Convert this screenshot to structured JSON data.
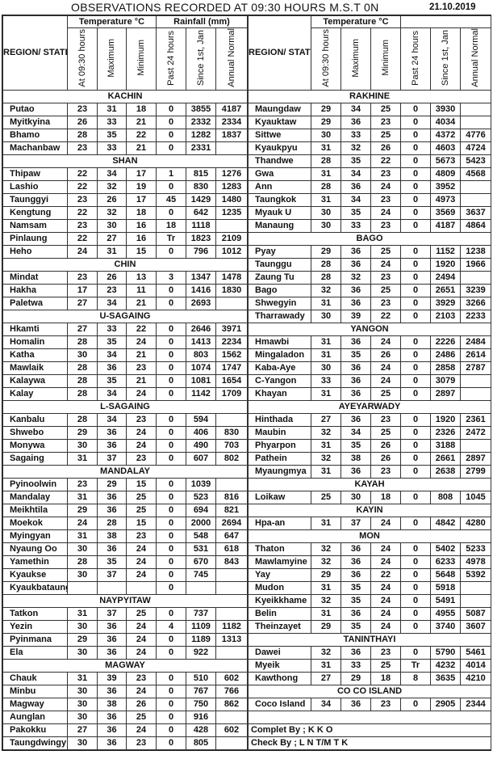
{
  "title": "OBSERVATIONS RECORDED AT 09:30 HOURS M.S.T 0N",
  "date": "21.10.2019",
  "headers": {
    "region": "REGION/ STATE",
    "temperature": "Temperature °C",
    "rainfall": "Rainfall (mm)",
    "at_0930": "At 09:30 hours",
    "maximum": "Maximum",
    "minimum": "Minimum",
    "past_24": "Past 24 hours",
    "since_jan": "Since 1st, Jan",
    "annual_normal": "Annual Normal"
  },
  "left": [
    {
      "name": "KACHIN",
      "stations": [
        [
          "Putao",
          "23",
          "31",
          "18",
          "0",
          "3855",
          "4187"
        ],
        [
          "Myitkyina",
          "26",
          "33",
          "21",
          "0",
          "2332",
          "2334"
        ],
        [
          "Bhamo",
          "28",
          "35",
          "22",
          "0",
          "1282",
          "1837"
        ],
        [
          "Machanbaw",
          "23",
          "33",
          "21",
          "0",
          "2331",
          ""
        ]
      ]
    },
    {
      "name": "SHAN",
      "stations": [
        [
          "Thipaw",
          "22",
          "34",
          "17",
          "1",
          "815",
          "1276"
        ],
        [
          "Lashio",
          "22",
          "32",
          "19",
          "0",
          "830",
          "1283"
        ],
        [
          "Taunggyi",
          "23",
          "26",
          "17",
          "45",
          "1429",
          "1480"
        ],
        [
          "Kengtung",
          "22",
          "32",
          "18",
          "0",
          "642",
          "1235"
        ],
        [
          "Namsam",
          "23",
          "30",
          "16",
          "18",
          "1118",
          ""
        ],
        [
          "Pinlaung",
          "22",
          "27",
          "16",
          "Tr",
          "1823",
          "2109"
        ],
        [
          "Heho",
          "24",
          "31",
          "15",
          "0",
          "796",
          "1012"
        ]
      ]
    },
    {
      "name": "CHIN",
      "stations": [
        [
          "Mindat",
          "23",
          "26",
          "13",
          "3",
          "1347",
          "1478"
        ],
        [
          "Hakha",
          "17",
          "23",
          "11",
          "0",
          "1416",
          "1830"
        ],
        [
          "Paletwa",
          "27",
          "34",
          "21",
          "0",
          "2693",
          ""
        ]
      ]
    },
    {
      "name": "U-SAGAING",
      "stations": [
        [
          "Hkamti",
          "27",
          "33",
          "22",
          "0",
          "2646",
          "3971"
        ],
        [
          "Homalin",
          "28",
          "35",
          "24",
          "0",
          "1413",
          "2234"
        ],
        [
          "Katha",
          "30",
          "34",
          "21",
          "0",
          "803",
          "1562"
        ],
        [
          "Mawlaik",
          "28",
          "36",
          "23",
          "0",
          "1074",
          "1747"
        ],
        [
          "Kalaywa",
          "28",
          "35",
          "21",
          "0",
          "1081",
          "1654"
        ],
        [
          "Kalay",
          "28",
          "34",
          "24",
          "0",
          "1142",
          "1709"
        ]
      ]
    },
    {
      "name": "L-SAGAING",
      "stations": [
        [
          "Kanbalu",
          "28",
          "34",
          "23",
          "0",
          "594",
          ""
        ],
        [
          "Shwebo",
          "29",
          "36",
          "24",
          "0",
          "406",
          "830"
        ],
        [
          "Monywa",
          "30",
          "36",
          "24",
          "0",
          "490",
          "703"
        ],
        [
          "Sagaing",
          "31",
          "37",
          "23",
          "0",
          "607",
          "802"
        ]
      ]
    },
    {
      "name": "MANDALAY",
      "stations": [
        [
          "Pyinoolwin",
          "23",
          "29",
          "15",
          "0",
          "1039",
          ""
        ],
        [
          "Mandalay",
          "31",
          "36",
          "25",
          "0",
          "523",
          "816"
        ],
        [
          "Meikhtila",
          "29",
          "36",
          "25",
          "0",
          "694",
          "821"
        ],
        [
          "Moekok",
          "24",
          "28",
          "15",
          "0",
          "2000",
          "2694"
        ],
        [
          "Myingyan",
          "31",
          "38",
          "23",
          "0",
          "548",
          "647"
        ],
        [
          "Nyaung Oo",
          "30",
          "36",
          "24",
          "0",
          "531",
          "618"
        ],
        [
          "Yamethin",
          "28",
          "35",
          "24",
          "0",
          "670",
          "843"
        ],
        [
          "Kyaukse",
          "30",
          "37",
          "24",
          "0",
          "745",
          ""
        ],
        [
          "Kyaukbataung",
          "",
          "",
          "",
          "0",
          "",
          ""
        ]
      ]
    },
    {
      "name": "NAYPYITAW",
      "stations": [
        [
          "Tatkon",
          "31",
          "37",
          "25",
          "0",
          "737",
          ""
        ],
        [
          "Yezin",
          "30",
          "36",
          "24",
          "4",
          "1109",
          "1182"
        ],
        [
          "Pyinmana",
          "29",
          "36",
          "24",
          "0",
          "1189",
          "1313"
        ],
        [
          "Ela",
          "30",
          "36",
          "24",
          "0",
          "922",
          ""
        ]
      ]
    },
    {
      "name": "MAGWAY",
      "stations": [
        [
          "Chauk",
          "31",
          "39",
          "23",
          "0",
          "510",
          "602"
        ],
        [
          "Minbu",
          "30",
          "36",
          "24",
          "0",
          "767",
          "766"
        ],
        [
          "Magway",
          "30",
          "38",
          "26",
          "0",
          "750",
          "862"
        ],
        [
          "Aunglan",
          "30",
          "36",
          "25",
          "0",
          "916",
          ""
        ],
        [
          "Pakokku",
          "27",
          "36",
          "24",
          "0",
          "428",
          "602"
        ],
        [
          "Taungdwingy",
          "30",
          "36",
          "23",
          "0",
          "805",
          ""
        ]
      ]
    }
  ],
  "right": [
    {
      "name": "RAKHINE",
      "stations": [
        [
          "Maungdaw",
          "29",
          "34",
          "25",
          "0",
          "3930",
          ""
        ],
        [
          "Kyauktaw",
          "29",
          "36",
          "23",
          "0",
          "4034",
          ""
        ],
        [
          "Sittwe",
          "30",
          "33",
          "25",
          "0",
          "4372",
          "4776"
        ],
        [
          "Kyaukpyu",
          "31",
          "32",
          "26",
          "0",
          "4603",
          "4724"
        ],
        [
          "Thandwe",
          "28",
          "35",
          "22",
          "0",
          "5673",
          "5423"
        ],
        [
          "Gwa",
          "31",
          "34",
          "23",
          "0",
          "4809",
          "4568"
        ],
        [
          "Ann",
          "28",
          "36",
          "24",
          "0",
          "3952",
          ""
        ],
        [
          "Taungkok",
          "31",
          "34",
          "23",
          "0",
          "4973",
          ""
        ],
        [
          "Myauk U",
          "30",
          "35",
          "24",
          "0",
          "3569",
          "3637"
        ],
        [
          "Manaung",
          "30",
          "33",
          "23",
          "0",
          "4187",
          "4864"
        ]
      ]
    },
    {
      "name": "BAGO",
      "stations": [
        [
          "Pyay",
          "29",
          "36",
          "25",
          "0",
          "1152",
          "1238"
        ],
        [
          "Taunggu",
          "28",
          "36",
          "24",
          "0",
          "1920",
          "1966"
        ],
        [
          "Zaung Tu",
          "28",
          "32",
          "23",
          "0",
          "2494",
          ""
        ],
        [
          "Bago",
          "32",
          "36",
          "25",
          "0",
          "2651",
          "3239"
        ],
        [
          "Shwegyin",
          "31",
          "36",
          "23",
          "0",
          "3929",
          "3266"
        ],
        [
          "Tharrawady",
          "30",
          "39",
          "22",
          "0",
          "2103",
          "2233"
        ]
      ]
    },
    {
      "name": "YANGON",
      "stations": [
        [
          "Hmawbi",
          "31",
          "36",
          "24",
          "0",
          "2226",
          "2484"
        ],
        [
          "Mingaladon",
          "31",
          "35",
          "26",
          "0",
          "2486",
          "2614"
        ],
        [
          "Kaba-Aye",
          "30",
          "36",
          "24",
          "0",
          "2858",
          "2787"
        ],
        [
          "C-Yangon",
          "33",
          "36",
          "24",
          "0",
          "3079",
          ""
        ],
        [
          "Khayan",
          "31",
          "36",
          "25",
          "0",
          "2897",
          ""
        ]
      ]
    },
    {
      "name": "AYEYARWADY",
      "stations": [
        [
          "Hinthada",
          "27",
          "36",
          "23",
          "0",
          "1920",
          "2361"
        ],
        [
          "Maubin",
          "32",
          "34",
          "25",
          "0",
          "2326",
          "2472"
        ],
        [
          "Phyarpon",
          "31",
          "35",
          "26",
          "0",
          "3188",
          ""
        ],
        [
          "Pathein",
          "32",
          "38",
          "26",
          "0",
          "2661",
          "2897"
        ],
        [
          "Myaungmya",
          "31",
          "36",
          "23",
          "0",
          "2638",
          "2799"
        ]
      ]
    },
    {
      "name": "KAYAH",
      "stations": [
        [
          "Loikaw",
          "25",
          "30",
          "18",
          "0",
          "808",
          "1045"
        ]
      ]
    },
    {
      "name": "KAYIN",
      "stations": [
        [
          "Hpa-an",
          "31",
          "37",
          "24",
          "0",
          "4842",
          "4280"
        ]
      ]
    },
    {
      "name": "MON",
      "stations": [
        [
          "Thaton",
          "32",
          "36",
          "24",
          "0",
          "5402",
          "5233"
        ],
        [
          "Mawlamyine",
          "32",
          "36",
          "24",
          "0",
          "6233",
          "4978"
        ],
        [
          "Yay",
          "29",
          "36",
          "22",
          "0",
          "5648",
          "5392"
        ],
        [
          "Mudon",
          "31",
          "35",
          "24",
          "0",
          "5918",
          ""
        ],
        [
          "Kyeikkhame",
          "32",
          "35",
          "24",
          "0",
          "5491",
          ""
        ],
        [
          "Belin",
          "31",
          "36",
          "24",
          "0",
          "4955",
          "5087"
        ],
        [
          "Theinzayet",
          "29",
          "35",
          "24",
          "0",
          "3740",
          "3607"
        ]
      ]
    },
    {
      "name": "TANINTHAYI",
      "stations": [
        [
          "Dawei",
          "32",
          "36",
          "23",
          "0",
          "5790",
          "5461"
        ],
        [
          "Myeik",
          "31",
          "33",
          "25",
          "Tr",
          "4232",
          "4014"
        ],
        [
          "Kawthong",
          "27",
          "29",
          "18",
          "8",
          "3635",
          "4210"
        ]
      ]
    },
    {
      "name": "CO CO  ISLAND",
      "stations": [
        [
          "Coco  Island",
          "34",
          "36",
          "23",
          "0",
          "2905",
          "2344"
        ]
      ]
    }
  ],
  "footer": {
    "completed_by": "Complet By ;     K K O",
    "checked_by": "Check By ; L N T/M T K"
  }
}
